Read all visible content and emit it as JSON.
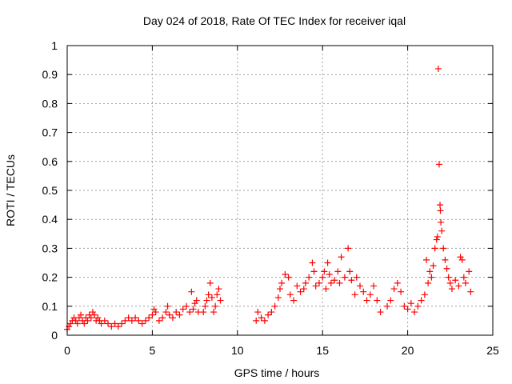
{
  "chart_data": {
    "type": "scatter",
    "title": "Day 024 of 2018, Rate Of TEC Index for receiver iqal",
    "xlabel": "GPS time / hours",
    "ylabel": "ROTI / TECUs",
    "xlim": [
      0,
      25
    ],
    "ylim": [
      0,
      1
    ],
    "xticks": [
      0,
      5,
      10,
      15,
      20,
      25
    ],
    "xtick_labels": [
      "0",
      "5",
      "10",
      "15",
      "20",
      "25"
    ],
    "yticks": [
      0,
      0.1,
      0.2,
      0.3,
      0.4,
      0.5,
      0.6,
      0.7,
      0.8,
      0.9,
      1
    ],
    "ytick_labels": [
      "0",
      "0.1",
      "0.2",
      "0.3",
      "0.4",
      "0.5",
      "0.6",
      "0.7",
      "0.8",
      "0.9",
      "1"
    ],
    "grid": true,
    "marker": "+",
    "color": "#ff0000",
    "series": [
      {
        "name": "ROTI",
        "points": [
          [
            0.0,
            0.02
          ],
          [
            0.1,
            0.03
          ],
          [
            0.2,
            0.04
          ],
          [
            0.3,
            0.05
          ],
          [
            0.4,
            0.06
          ],
          [
            0.5,
            0.05
          ],
          [
            0.6,
            0.04
          ],
          [
            0.7,
            0.06
          ],
          [
            0.8,
            0.07
          ],
          [
            0.9,
            0.05
          ],
          [
            1.0,
            0.04
          ],
          [
            1.1,
            0.06
          ],
          [
            1.2,
            0.05
          ],
          [
            1.3,
            0.07
          ],
          [
            1.4,
            0.06
          ],
          [
            1.5,
            0.08
          ],
          [
            1.6,
            0.07
          ],
          [
            1.7,
            0.05
          ],
          [
            1.8,
            0.06
          ],
          [
            1.9,
            0.05
          ],
          [
            2.0,
            0.04
          ],
          [
            2.2,
            0.05
          ],
          [
            2.4,
            0.04
          ],
          [
            2.6,
            0.03
          ],
          [
            2.8,
            0.04
          ],
          [
            3.0,
            0.03
          ],
          [
            3.2,
            0.04
          ],
          [
            3.4,
            0.05
          ],
          [
            3.6,
            0.06
          ],
          [
            3.8,
            0.05
          ],
          [
            4.0,
            0.06
          ],
          [
            4.2,
            0.05
          ],
          [
            4.4,
            0.04
          ],
          [
            4.6,
            0.05
          ],
          [
            4.8,
            0.06
          ],
          [
            5.0,
            0.07
          ],
          [
            5.1,
            0.09
          ],
          [
            5.2,
            0.08
          ],
          [
            5.4,
            0.05
          ],
          [
            5.6,
            0.06
          ],
          [
            5.8,
            0.08
          ],
          [
            5.9,
            0.1
          ],
          [
            6.0,
            0.07
          ],
          [
            6.2,
            0.06
          ],
          [
            6.4,
            0.08
          ],
          [
            6.6,
            0.07
          ],
          [
            6.8,
            0.09
          ],
          [
            7.0,
            0.1
          ],
          [
            7.2,
            0.08
          ],
          [
            7.3,
            0.15
          ],
          [
            7.4,
            0.09
          ],
          [
            7.5,
            0.11
          ],
          [
            7.6,
            0.12
          ],
          [
            7.7,
            0.08
          ],
          [
            8.0,
            0.08
          ],
          [
            8.1,
            0.1
          ],
          [
            8.2,
            0.12
          ],
          [
            8.3,
            0.14
          ],
          [
            8.4,
            0.18
          ],
          [
            8.5,
            0.13
          ],
          [
            8.6,
            0.08
          ],
          [
            8.7,
            0.1
          ],
          [
            8.8,
            0.14
          ],
          [
            8.9,
            0.16
          ],
          [
            9.0,
            0.12
          ],
          [
            11.1,
            0.05
          ],
          [
            11.2,
            0.08
          ],
          [
            11.4,
            0.06
          ],
          [
            11.6,
            0.05
          ],
          [
            11.8,
            0.07
          ],
          [
            12.0,
            0.08
          ],
          [
            12.2,
            0.1
          ],
          [
            12.4,
            0.13
          ],
          [
            12.5,
            0.16
          ],
          [
            12.6,
            0.18
          ],
          [
            12.8,
            0.21
          ],
          [
            13.0,
            0.2
          ],
          [
            13.1,
            0.14
          ],
          [
            13.3,
            0.12
          ],
          [
            13.5,
            0.17
          ],
          [
            13.7,
            0.15
          ],
          [
            13.9,
            0.16
          ],
          [
            14.0,
            0.18
          ],
          [
            14.2,
            0.2
          ],
          [
            14.4,
            0.25
          ],
          [
            14.5,
            0.22
          ],
          [
            14.6,
            0.17
          ],
          [
            14.8,
            0.18
          ],
          [
            15.0,
            0.2
          ],
          [
            15.1,
            0.22
          ],
          [
            15.2,
            0.16
          ],
          [
            15.3,
            0.25
          ],
          [
            15.4,
            0.21
          ],
          [
            15.5,
            0.18
          ],
          [
            15.7,
            0.19
          ],
          [
            15.9,
            0.22
          ],
          [
            16.0,
            0.18
          ],
          [
            16.1,
            0.27
          ],
          [
            16.3,
            0.2
          ],
          [
            16.5,
            0.3
          ],
          [
            16.6,
            0.22
          ],
          [
            16.7,
            0.19
          ],
          [
            16.9,
            0.14
          ],
          [
            17.0,
            0.2
          ],
          [
            17.2,
            0.17
          ],
          [
            17.4,
            0.15
          ],
          [
            17.6,
            0.12
          ],
          [
            17.8,
            0.14
          ],
          [
            18.0,
            0.17
          ],
          [
            18.2,
            0.12
          ],
          [
            18.4,
            0.08
          ],
          [
            18.8,
            0.1
          ],
          [
            19.0,
            0.12
          ],
          [
            19.2,
            0.16
          ],
          [
            19.4,
            0.18
          ],
          [
            19.6,
            0.15
          ],
          [
            19.8,
            0.1
          ],
          [
            20.0,
            0.09
          ],
          [
            20.2,
            0.11
          ],
          [
            20.4,
            0.08
          ],
          [
            20.6,
            0.1
          ],
          [
            20.8,
            0.12
          ],
          [
            21.0,
            0.14
          ],
          [
            21.1,
            0.26
          ],
          [
            21.2,
            0.18
          ],
          [
            21.3,
            0.22
          ],
          [
            21.4,
            0.2
          ],
          [
            21.5,
            0.24
          ],
          [
            21.6,
            0.3
          ],
          [
            21.7,
            0.33
          ],
          [
            21.75,
            0.34
          ],
          [
            21.8,
            0.92
          ],
          [
            21.85,
            0.59
          ],
          [
            21.9,
            0.45
          ],
          [
            21.92,
            0.43
          ],
          [
            21.95,
            0.39
          ],
          [
            22.0,
            0.36
          ],
          [
            22.1,
            0.3
          ],
          [
            22.2,
            0.26
          ],
          [
            22.3,
            0.23
          ],
          [
            22.4,
            0.2
          ],
          [
            22.5,
            0.18
          ],
          [
            22.6,
            0.16
          ],
          [
            22.8,
            0.19
          ],
          [
            23.0,
            0.17
          ],
          [
            23.1,
            0.27
          ],
          [
            23.2,
            0.26
          ],
          [
            23.3,
            0.2
          ],
          [
            23.4,
            0.18
          ],
          [
            23.6,
            0.22
          ],
          [
            23.7,
            0.15
          ]
        ]
      }
    ]
  }
}
